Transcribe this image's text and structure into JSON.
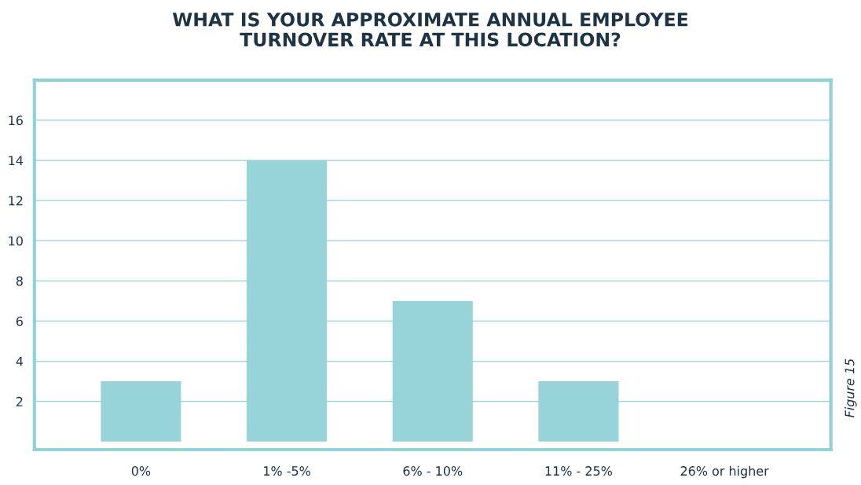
{
  "chart_data": {
    "type": "bar",
    "title": "WHAT IS YOUR APPROXIMATE ANNUAL EMPLOYEE\nTURNOVER RATE AT THIS LOCATION?",
    "categories": [
      "0%",
      "1% -5%",
      "6% - 10%",
      "11% - 25%",
      "26% or higher"
    ],
    "values": [
      3,
      14,
      7,
      3,
      0
    ],
    "color": "#97d4da",
    "ylim": [
      -0.4,
      18
    ],
    "yticks": [
      2,
      4,
      6,
      8,
      10,
      12,
      14,
      16
    ],
    "grid": "y",
    "annotations": [
      "Figure 15"
    ]
  }
}
